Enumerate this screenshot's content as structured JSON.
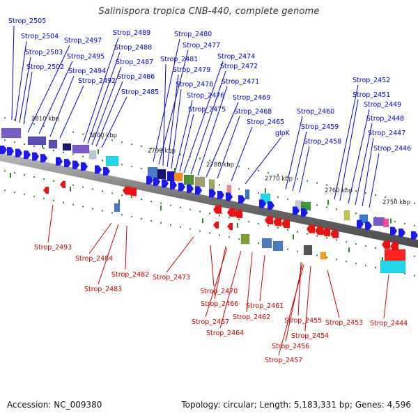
{
  "title": "Salinispora tropica CNB-440, complete genome",
  "footer": {
    "accession": "Accession: NC_009380",
    "summary": "Topology: circular; Length: 5,183,331 bp; Genes: 4,596"
  },
  "colors": {
    "forward_label": "#0000cc",
    "reverse_label": "#cc0000",
    "forward_arrow": "#1a1aee",
    "reverse_arrow": "#ee1111",
    "backbone": "#888888",
    "tick": "#2a8a2a"
  },
  "kbp_labels": [
    "2810 kbp",
    "2800 kbp",
    "2790 kbp",
    "2780 kbp",
    "2770 kbp",
    "2760 kbp",
    "2750 kbp"
  ],
  "forward_genes": [
    "Strop_2505",
    "Strop_2504",
    "Strop_2503",
    "Strop_2502",
    "Strop_2497",
    "Strop_2495",
    "Strop_2494",
    "Strop_2492",
    "Strop_2489",
    "Strop_2488",
    "Strop_2487",
    "Strop_2486",
    "Strop_2485",
    "Strop_2480",
    "Strop_2477",
    "Strop_2481",
    "Strop_2479",
    "Strop_2478",
    "Strop_2476",
    "Strop_2475",
    "Strop_2474",
    "Strop_2472",
    "Strop_2471",
    "Strop_2469",
    "Strop_2468",
    "Strop_2465",
    "glpK",
    "Strop_2460",
    "Strop_2459",
    "Strop_2458",
    "Strop_2452",
    "Strop_2451",
    "Strop_2449",
    "Strop_2448",
    "Strop_2447",
    "Strop_2446"
  ],
  "reverse_genes": [
    "Strop_2493",
    "Strop_2484",
    "Strop_2483",
    "Strop_2482",
    "Strop_2473",
    "Strop_2470",
    "Strop_2466",
    "Strop_2467",
    "Strop_2464",
    "Strop_2462",
    "Strop_2461",
    "Strop_2455",
    "Strop_2456",
    "Strop_2457",
    "Strop_2454",
    "Strop_2453",
    "Strop_2444"
  ]
}
